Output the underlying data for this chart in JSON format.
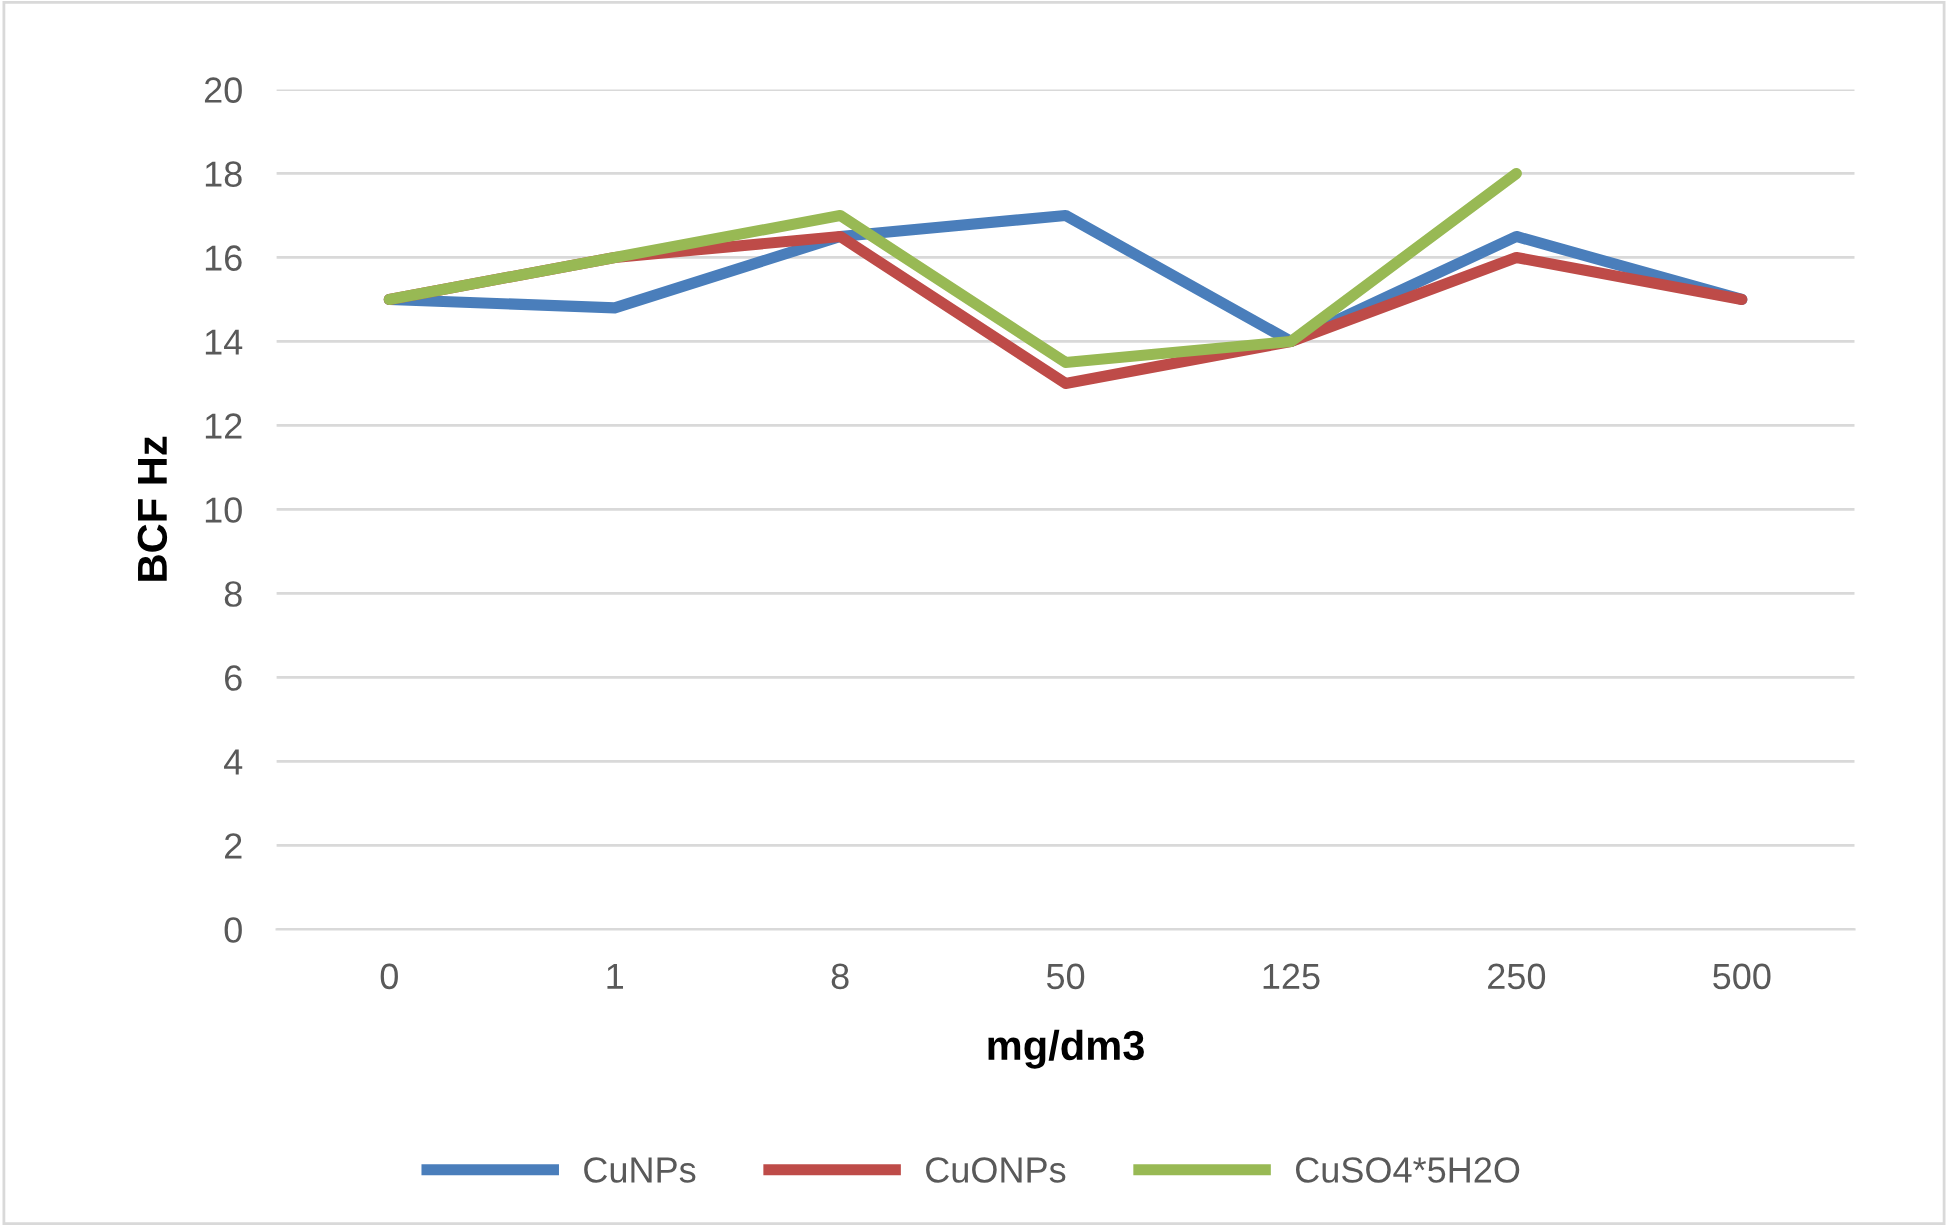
{
  "chart_data": {
    "type": "line",
    "xlabel": "mg/dm3",
    "ylabel": "BCF Hz",
    "categories": [
      "0",
      "1",
      "8",
      "50",
      "125",
      "250",
      "500"
    ],
    "series": [
      {
        "name": "CuNPs",
        "color": "#4a7ebb",
        "values": [
          15,
          14.8,
          16.5,
          17,
          14,
          16.5,
          15
        ]
      },
      {
        "name": "CuONPs",
        "color": "#be4b48",
        "values": [
          15,
          16,
          16.5,
          13,
          14,
          16,
          15
        ]
      },
      {
        "name": "CuSO4*5H2O",
        "color": "#98b954",
        "values": [
          15,
          16,
          17,
          13.5,
          14,
          18,
          null
        ]
      }
    ],
    "ylim": [
      0,
      20
    ],
    "yticks": [
      0,
      2,
      4,
      6,
      8,
      10,
      12,
      14,
      16,
      18,
      20
    ],
    "grid": "y",
    "legend": "bottom",
    "marker": "none",
    "line_style": "solid"
  }
}
